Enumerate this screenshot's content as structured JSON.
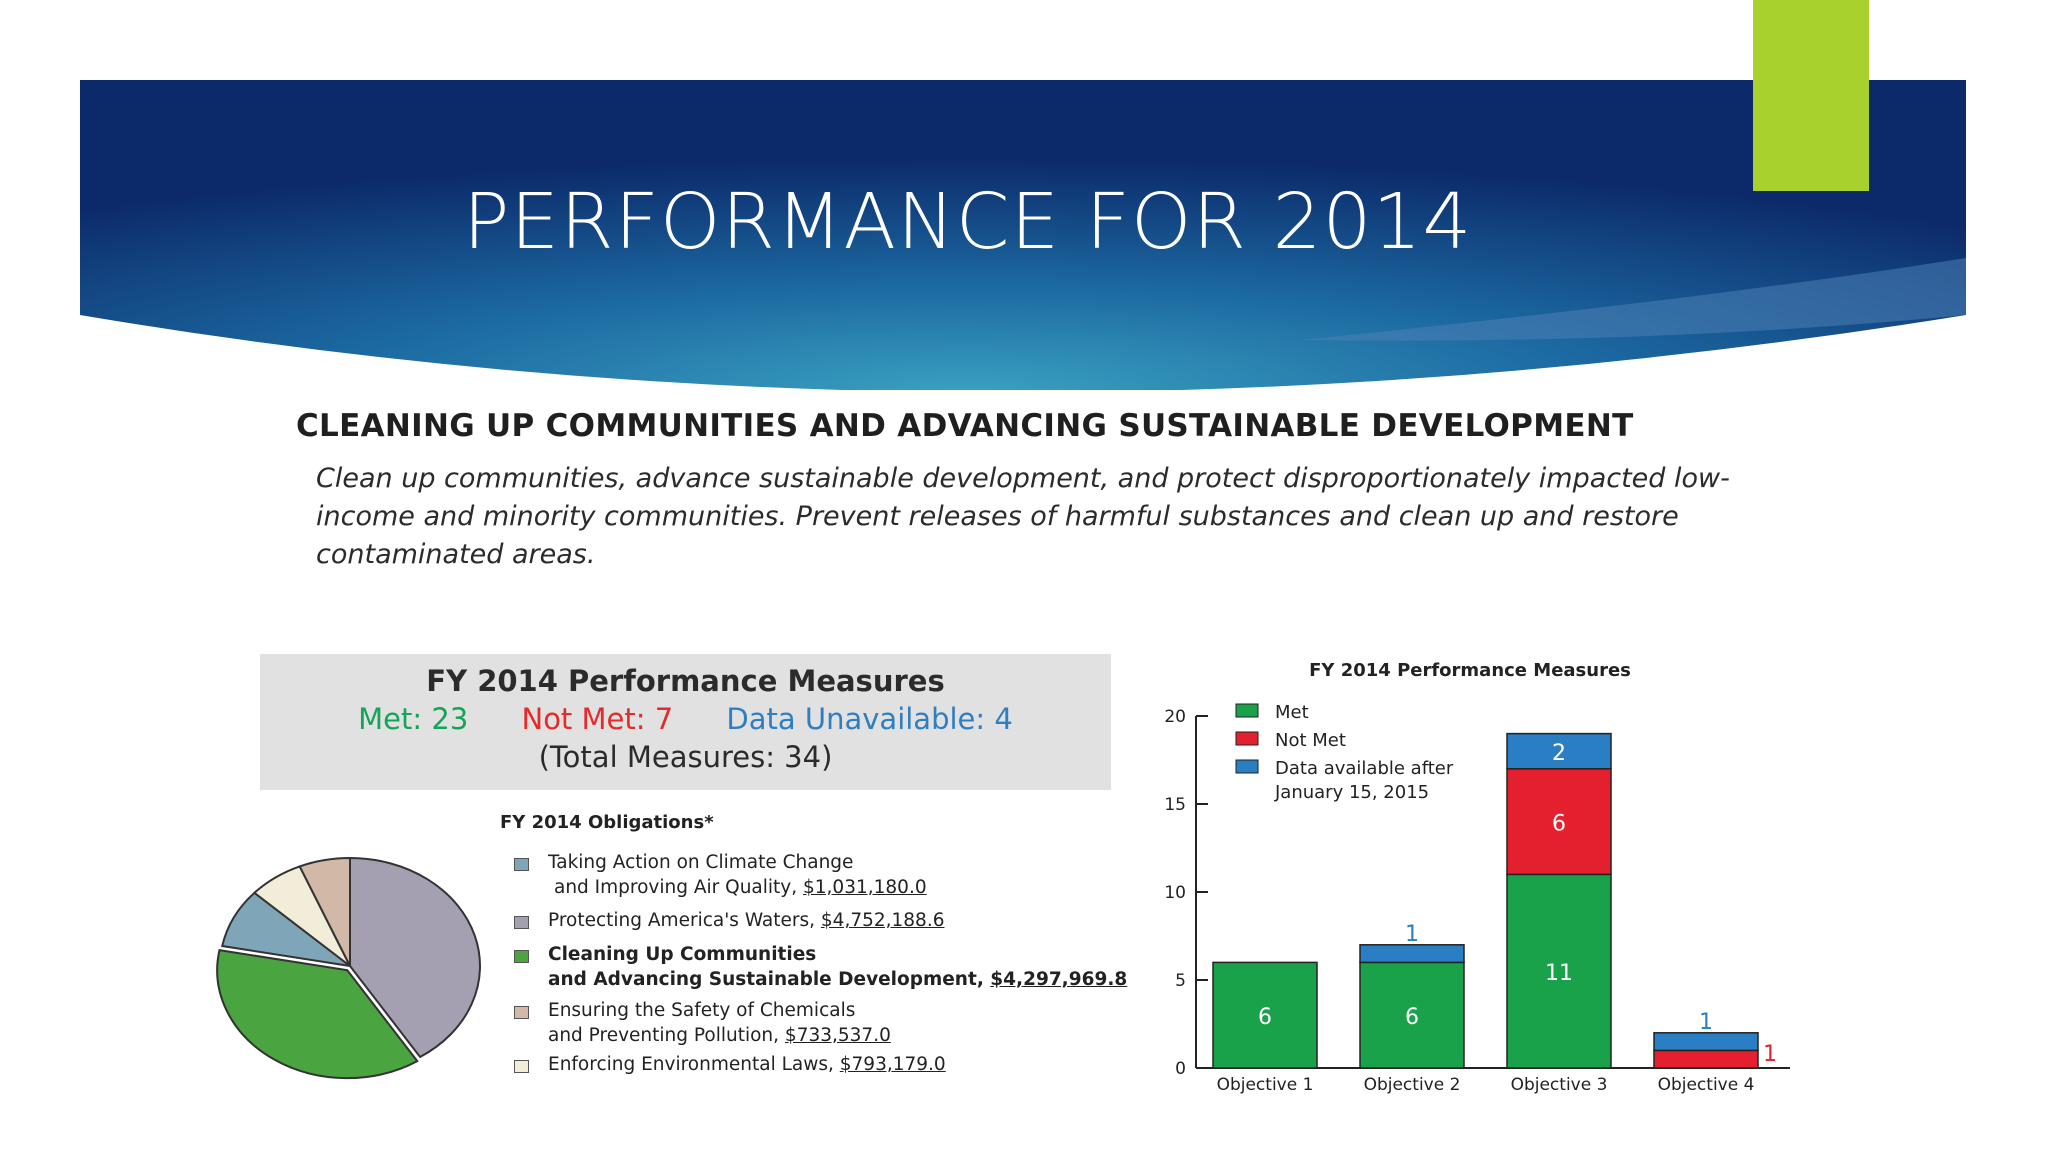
{
  "slide": {
    "title": "PERFORMANCE FOR 2014",
    "colors": {
      "banner_dark": "#102a6a",
      "banner_light": "#2f8fb5",
      "accent_tab": "#a8d12e"
    }
  },
  "section": {
    "heading": "CLEANING UP COMMUNITIES AND ADVANCING SUSTAINABLE DEVELOPMENT",
    "description": "Clean up communities, advance sustainable development, and protect disproportionately impacted low-income and minority communities. Prevent releases of harmful substances and clean up and restore contaminated areas."
  },
  "summary": {
    "title": "FY 2014 Performance Measures",
    "met": "Met: 23",
    "not_met": "Not Met: 7",
    "data_unavailable": "Data Unavailable: 4",
    "total": "(Total Measures: 34)"
  },
  "chart_data": [
    {
      "type": "pie",
      "title": "FY 2014 Obligations*",
      "slices": [
        {
          "label_line1": "Taking Action on Climate Change",
          "label_line2": "and Improving Air Quality, ",
          "amount": "$1,031,180.0",
          "value": 1031180.0,
          "color": "#7fa6b8",
          "bold": false
        },
        {
          "label_line1": "Protecting America's Waters, ",
          "label_line2": "",
          "amount": "$4,752,188.6",
          "value": 4752188.6,
          "color": "#a59fb2",
          "bold": false
        },
        {
          "label_line1": "Cleaning Up Communities",
          "label_line2": "and Advancing Sustainable Development, ",
          "amount": "$4,297,969.8",
          "value": 4297969.8,
          "color": "#4aa540",
          "bold": true
        },
        {
          "label_line1": "Ensuring the Safety of Chemicals",
          "label_line2": "and Preventing Pollution, ",
          "amount": "$733,537.0",
          "value": 733537.0,
          "color": "#d2b8a6",
          "bold": false
        },
        {
          "label_line1": "Enforcing Environmental Laws, ",
          "label_line2": "",
          "amount": "$793,179.0",
          "value": 793179.0,
          "color": "#f1edd8",
          "bold": false
        }
      ]
    },
    {
      "type": "bar",
      "stacked": true,
      "title": "FY 2014 Performance Measures",
      "categories": [
        "Objective 1",
        "Objective 2",
        "Objective 3",
        "Objective 4"
      ],
      "series": [
        {
          "name": "Met",
          "values": [
            6,
            6,
            11,
            0
          ],
          "color": "#1aa24a"
        },
        {
          "name": "Not Met",
          "values": [
            0,
            0,
            6,
            1
          ],
          "color": "#e5202e"
        },
        {
          "name": "Data available after January 15, 2015",
          "values": [
            0,
            1,
            2,
            1
          ],
          "color": "#2a7ec3"
        }
      ],
      "legend_lines": [
        "Met",
        "Not Met",
        "Data available after",
        "January 15, 2015"
      ],
      "ylim": [
        0,
        20
      ],
      "yticks": [
        0,
        5,
        10,
        15,
        20
      ],
      "legend_position": "top-left",
      "grid": false
    }
  ]
}
